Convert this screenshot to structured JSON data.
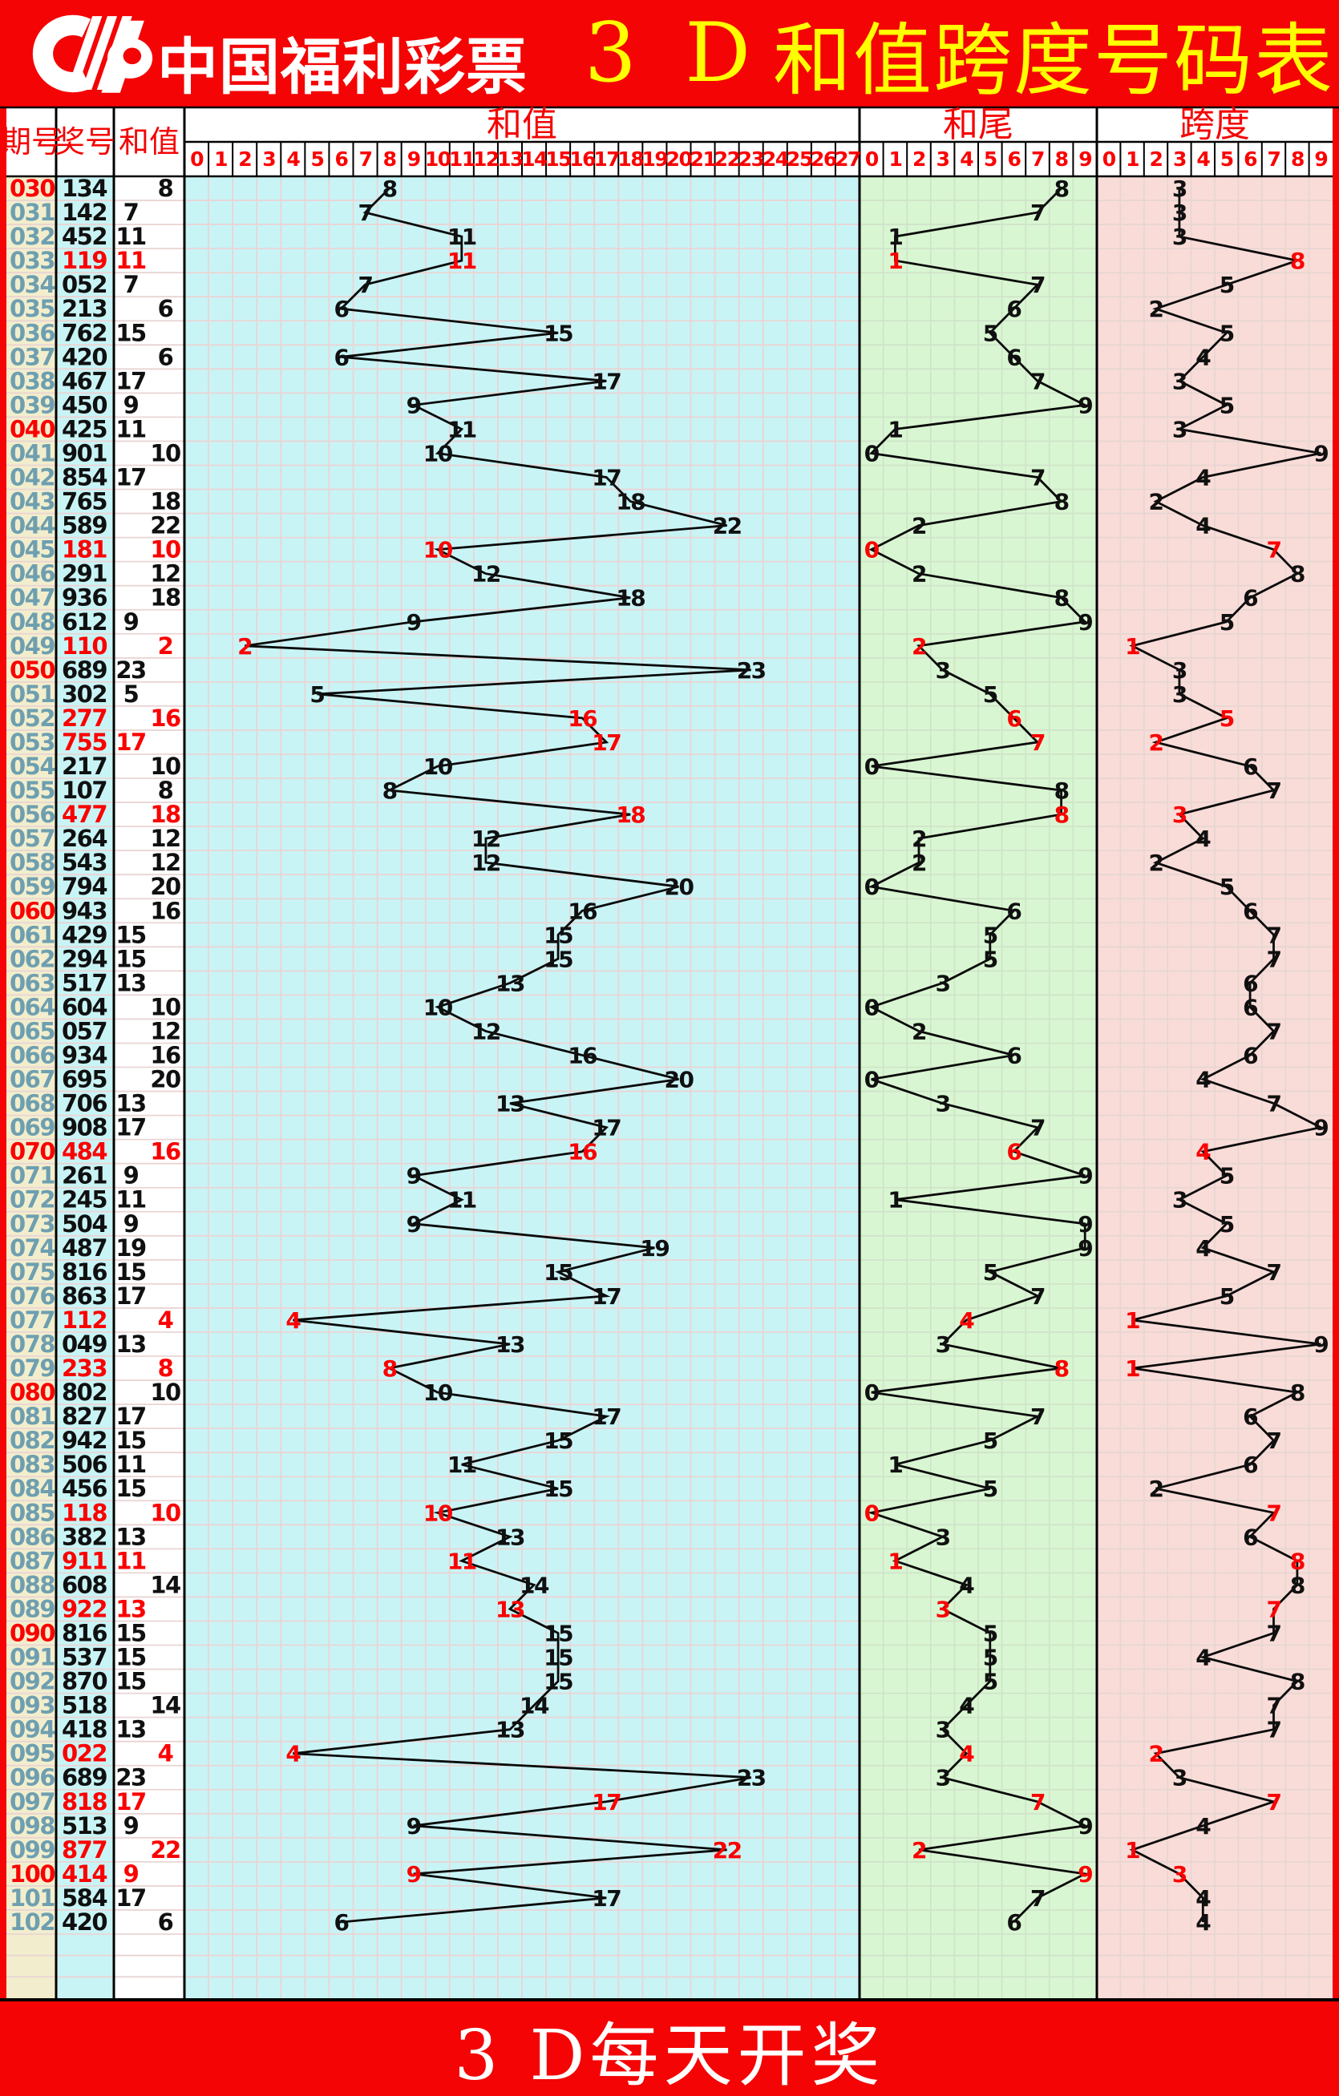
{
  "header": {
    "brand": "中国福利彩票",
    "title_3d": "3 D",
    "title_rest": "和值跨度号码表"
  },
  "footer": {
    "text": "3 D每天开奖"
  },
  "table": {
    "columns": {
      "period": "期号",
      "number": "奖号",
      "sum": "和值"
    }
  },
  "colors": {
    "band_red": "#f40404",
    "label_red": "#f40404",
    "scale_red": "#fb0000",
    "pair_red": "#fb0000",
    "period_blue": "#6e9fb0",
    "text_black": "#101010",
    "title_yellow": "#ffff00",
    "cream": "#f2eecd",
    "cyan": "#c9f4f6",
    "green": "#d9f6d2",
    "pink": "#f9dcd8",
    "grid_on_cyan": "#ead4d4",
    "grid_on_green": "#cfe4c9",
    "grid_on_pink": "#e7d6d2",
    "line_black": "#0a0a0a"
  },
  "chart_data": {
    "type": "line",
    "title": "3D和值跨度号码表",
    "panels": [
      {
        "key": "sum",
        "name": "和值",
        "range": [
          0,
          27
        ]
      },
      {
        "key": "tail",
        "name": "和尾",
        "range": [
          0,
          9
        ]
      },
      {
        "key": "span",
        "name": "跨度",
        "range": [
          0,
          9
        ]
      }
    ],
    "rows": [
      {
        "period": "030",
        "number": "134",
        "sum": 8,
        "tail": 8,
        "span": 3
      },
      {
        "period": "031",
        "number": "142",
        "sum": 7,
        "tail": 7,
        "span": 3
      },
      {
        "period": "032",
        "number": "452",
        "sum": 11,
        "tail": 1,
        "span": 3
      },
      {
        "period": "033",
        "number": "119",
        "sum": 11,
        "tail": 1,
        "span": 8
      },
      {
        "period": "034",
        "number": "052",
        "sum": 7,
        "tail": 7,
        "span": 5
      },
      {
        "period": "035",
        "number": "213",
        "sum": 6,
        "tail": 6,
        "span": 2
      },
      {
        "period": "036",
        "number": "762",
        "sum": 15,
        "tail": 5,
        "span": 5
      },
      {
        "period": "037",
        "number": "420",
        "sum": 6,
        "tail": 6,
        "span": 4
      },
      {
        "period": "038",
        "number": "467",
        "sum": 17,
        "tail": 7,
        "span": 3
      },
      {
        "period": "039",
        "number": "450",
        "sum": 9,
        "tail": 9,
        "span": 5
      },
      {
        "period": "040",
        "number": "425",
        "sum": 11,
        "tail": 1,
        "span": 3
      },
      {
        "period": "041",
        "number": "901",
        "sum": 10,
        "tail": 0,
        "span": 9
      },
      {
        "period": "042",
        "number": "854",
        "sum": 17,
        "tail": 7,
        "span": 4
      },
      {
        "period": "043",
        "number": "765",
        "sum": 18,
        "tail": 8,
        "span": 2
      },
      {
        "period": "044",
        "number": "589",
        "sum": 22,
        "tail": 2,
        "span": 4
      },
      {
        "period": "045",
        "number": "181",
        "sum": 10,
        "tail": 0,
        "span": 7
      },
      {
        "period": "046",
        "number": "291",
        "sum": 12,
        "tail": 2,
        "span": 8
      },
      {
        "period": "047",
        "number": "936",
        "sum": 18,
        "tail": 8,
        "span": 6
      },
      {
        "period": "048",
        "number": "612",
        "sum": 9,
        "tail": 9,
        "span": 5
      },
      {
        "period": "049",
        "number": "110",
        "sum": 2,
        "tail": 2,
        "span": 1
      },
      {
        "period": "050",
        "number": "689",
        "sum": 23,
        "tail": 3,
        "span": 3
      },
      {
        "period": "051",
        "number": "302",
        "sum": 5,
        "tail": 5,
        "span": 3
      },
      {
        "period": "052",
        "number": "277",
        "sum": 16,
        "tail": 6,
        "span": 5
      },
      {
        "period": "053",
        "number": "755",
        "sum": 17,
        "tail": 7,
        "span": 2
      },
      {
        "period": "054",
        "number": "217",
        "sum": 10,
        "tail": 0,
        "span": 6
      },
      {
        "period": "055",
        "number": "107",
        "sum": 8,
        "tail": 8,
        "span": 7
      },
      {
        "period": "056",
        "number": "477",
        "sum": 18,
        "tail": 8,
        "span": 3
      },
      {
        "period": "057",
        "number": "264",
        "sum": 12,
        "tail": 2,
        "span": 4
      },
      {
        "period": "058",
        "number": "543",
        "sum": 12,
        "tail": 2,
        "span": 2
      },
      {
        "period": "059",
        "number": "794",
        "sum": 20,
        "tail": 0,
        "span": 5
      },
      {
        "period": "060",
        "number": "943",
        "sum": 16,
        "tail": 6,
        "span": 6
      },
      {
        "period": "061",
        "number": "429",
        "sum": 15,
        "tail": 5,
        "span": 7
      },
      {
        "period": "062",
        "number": "294",
        "sum": 15,
        "tail": 5,
        "span": 7
      },
      {
        "period": "063",
        "number": "517",
        "sum": 13,
        "tail": 3,
        "span": 6
      },
      {
        "period": "064",
        "number": "604",
        "sum": 10,
        "tail": 0,
        "span": 6
      },
      {
        "period": "065",
        "number": "057",
        "sum": 12,
        "tail": 2,
        "span": 7
      },
      {
        "period": "066",
        "number": "934",
        "sum": 16,
        "tail": 6,
        "span": 6
      },
      {
        "period": "067",
        "number": "695",
        "sum": 20,
        "tail": 0,
        "span": 4
      },
      {
        "period": "068",
        "number": "706",
        "sum": 13,
        "tail": 3,
        "span": 7
      },
      {
        "period": "069",
        "number": "908",
        "sum": 17,
        "tail": 7,
        "span": 9
      },
      {
        "period": "070",
        "number": "484",
        "sum": 16,
        "tail": 6,
        "span": 4
      },
      {
        "period": "071",
        "number": "261",
        "sum": 9,
        "tail": 9,
        "span": 5
      },
      {
        "period": "072",
        "number": "245",
        "sum": 11,
        "tail": 1,
        "span": 3
      },
      {
        "period": "073",
        "number": "504",
        "sum": 9,
        "tail": 9,
        "span": 5
      },
      {
        "period": "074",
        "number": "487",
        "sum": 19,
        "tail": 9,
        "span": 4
      },
      {
        "period": "075",
        "number": "816",
        "sum": 15,
        "tail": 5,
        "span": 7
      },
      {
        "period": "076",
        "number": "863",
        "sum": 17,
        "tail": 7,
        "span": 5
      },
      {
        "period": "077",
        "number": "112",
        "sum": 4,
        "tail": 4,
        "span": 1
      },
      {
        "period": "078",
        "number": "049",
        "sum": 13,
        "tail": 3,
        "span": 9
      },
      {
        "period": "079",
        "number": "233",
        "sum": 8,
        "tail": 8,
        "span": 1
      },
      {
        "period": "080",
        "number": "802",
        "sum": 10,
        "tail": 0,
        "span": 8
      },
      {
        "period": "081",
        "number": "827",
        "sum": 17,
        "tail": 7,
        "span": 6
      },
      {
        "period": "082",
        "number": "942",
        "sum": 15,
        "tail": 5,
        "span": 7
      },
      {
        "period": "083",
        "number": "506",
        "sum": 11,
        "tail": 1,
        "span": 6
      },
      {
        "period": "084",
        "number": "456",
        "sum": 15,
        "tail": 5,
        "span": 2
      },
      {
        "period": "085",
        "number": "118",
        "sum": 10,
        "tail": 0,
        "span": 7
      },
      {
        "period": "086",
        "number": "382",
        "sum": 13,
        "tail": 3,
        "span": 6
      },
      {
        "period": "087",
        "number": "911",
        "sum": 11,
        "tail": 1,
        "span": 8
      },
      {
        "period": "088",
        "number": "608",
        "sum": 14,
        "tail": 4,
        "span": 8
      },
      {
        "period": "089",
        "number": "922",
        "sum": 13,
        "tail": 3,
        "span": 7
      },
      {
        "period": "090",
        "number": "816",
        "sum": 15,
        "tail": 5,
        "span": 7
      },
      {
        "period": "091",
        "number": "537",
        "sum": 15,
        "tail": 5,
        "span": 4
      },
      {
        "period": "092",
        "number": "870",
        "sum": 15,
        "tail": 5,
        "span": 8
      },
      {
        "period": "093",
        "number": "518",
        "sum": 14,
        "tail": 4,
        "span": 7
      },
      {
        "period": "094",
        "number": "418",
        "sum": 13,
        "tail": 3,
        "span": 7
      },
      {
        "period": "095",
        "number": "022",
        "sum": 4,
        "tail": 4,
        "span": 2
      },
      {
        "period": "096",
        "number": "689",
        "sum": 23,
        "tail": 3,
        "span": 3
      },
      {
        "period": "097",
        "number": "818",
        "sum": 17,
        "tail": 7,
        "span": 7
      },
      {
        "period": "098",
        "number": "513",
        "sum": 9,
        "tail": 9,
        "span": 4
      },
      {
        "period": "099",
        "number": "877",
        "sum": 22,
        "tail": 2,
        "span": 1
      },
      {
        "period": "100",
        "number": "414",
        "sum": 9,
        "tail": 9,
        "span": 3
      },
      {
        "period": "101",
        "number": "584",
        "sum": 17,
        "tail": 7,
        "span": 4
      },
      {
        "period": "102",
        "number": "420",
        "sum": 6,
        "tail": 6,
        "span": 4
      }
    ]
  }
}
